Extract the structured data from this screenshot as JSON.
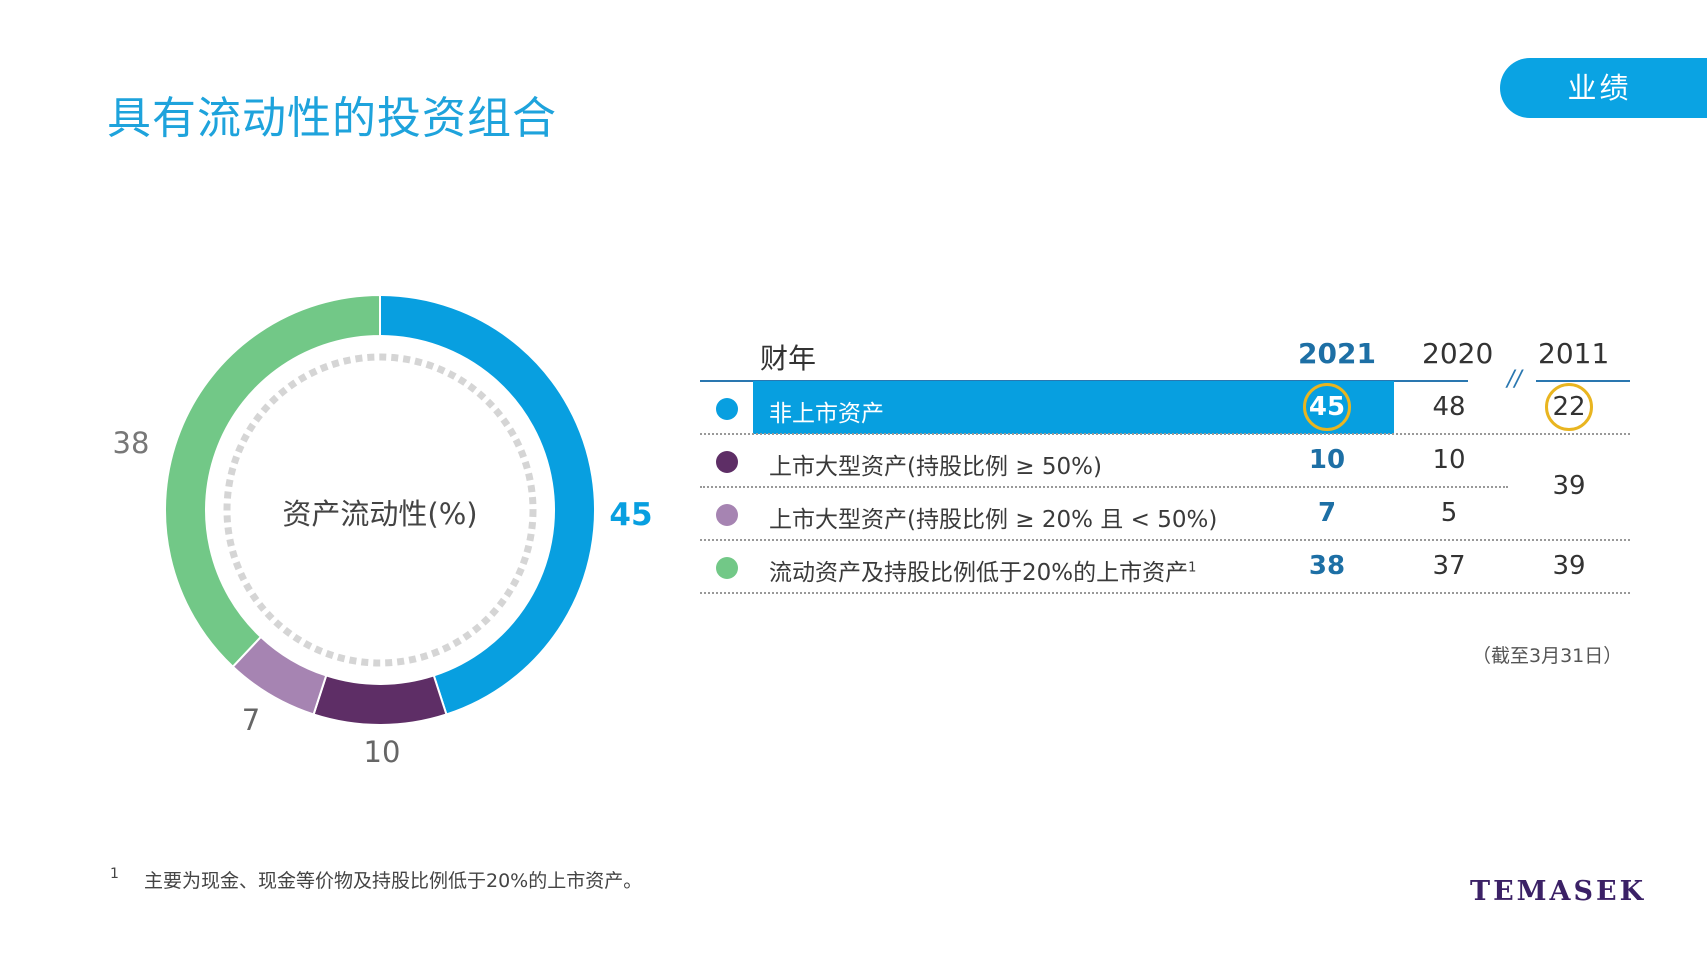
{
  "page": {
    "title": "具有流动性的投资组合",
    "badge": "业绩",
    "footnote_marker": "1",
    "footnote": "主要为现金、现金等价物及持股比例低于20%的上市资产。",
    "logo": "TEMASEK",
    "date_note": "（截至3月31日）"
  },
  "chart_data": {
    "type": "pie",
    "title": "资产流动性(%)",
    "slices": [
      {
        "label": "非上市资产",
        "value": 45,
        "color": "#089fe0"
      },
      {
        "label": "上市大型资产(持股比例 ≥ 50%)",
        "value": 10,
        "color": "#5e2e66"
      },
      {
        "label": "上市大型资产(持股比例 ≥ 20% 且 < 50%)",
        "value": 7,
        "color": "#a684b2"
      },
      {
        "label": "流动资产及持股比例低于20%的上市资产",
        "value": 38,
        "color": "#72c887"
      }
    ]
  },
  "table": {
    "header_label": "财年",
    "years": [
      "2021",
      "2020",
      "2011"
    ],
    "break_mark": "//",
    "rows": [
      {
        "label": "非上市资产",
        "sup": "",
        "color": "#089fe0",
        "v2021": "45",
        "v2020": "48",
        "v2011": "22"
      },
      {
        "label": "上市大型资产(持股比例  ≥  50%)",
        "sup": "",
        "color": "#5e2e66",
        "v2021": "10",
        "v2020": "10",
        "v2011": ""
      },
      {
        "label": "上市大型资产(持股比例  ≥  20%  且  <  50%)",
        "sup": "",
        "color": "#a684b2",
        "v2021": "7",
        "v2020": "5",
        "v2011": ""
      },
      {
        "label": "流动资产及持股比例低于20%的上市资产",
        "sup": "1",
        "color": "#72c887",
        "v2021": "38",
        "v2020": "37",
        "v2011": "39"
      }
    ],
    "merged_2011": "39"
  }
}
